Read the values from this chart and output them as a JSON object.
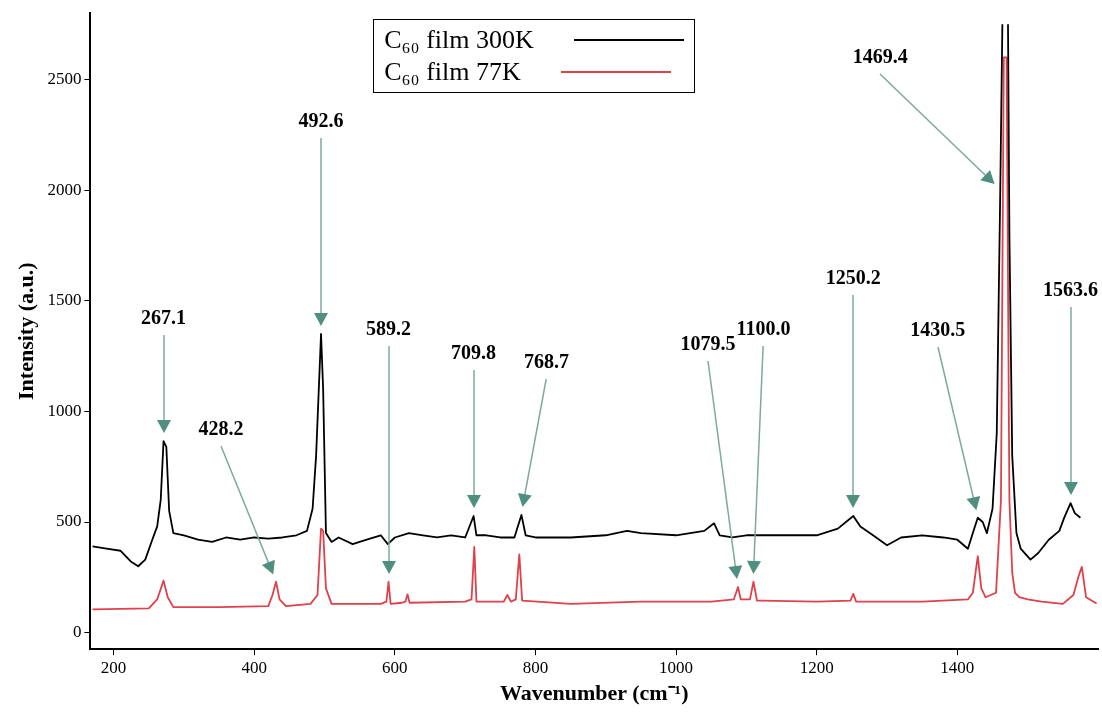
{
  "chart_data": {
    "type": "line",
    "xlabel": "Wavenumber (cm⁻¹)",
    "ylabel": "Intensity (a.u.)",
    "xlim": [
      167,
      1600
    ],
    "xticks": [
      200,
      400,
      600,
      800,
      1000,
      1200,
      1400
    ],
    "ylim": [
      -75,
      2800
    ],
    "yticks": [
      0,
      500,
      1000,
      1500,
      2000,
      2500
    ],
    "grid": false,
    "legend": "top",
    "marker": "none",
    "line_style": "solid",
    "series": [
      {
        "name": "C₆₀ film 300K",
        "color": "#000000",
        "x": [
          170,
          190,
          210,
          225,
          235,
          245,
          255,
          262,
          267,
          271,
          275,
          279,
          285,
          300,
          320,
          340,
          360,
          380,
          400,
          420,
          440,
          460,
          475,
          483,
          488,
          495,
          498,
          502,
          510,
          520,
          540,
          560,
          580,
          590,
          600,
          620,
          640,
          660,
          680,
          700,
          712,
          716,
          730,
          750,
          770,
          780,
          786,
          800,
          850,
          900,
          930,
          950,
          1000,
          1040,
          1054,
          1062,
          1080,
          1100,
          1150,
          1200,
          1230,
          1252,
          1262,
          1280,
          1300,
          1320,
          1350,
          1380,
          1400,
          1415,
          1422,
          1429,
          1436,
          1442,
          1450,
          1456,
          1461,
          1464,
          1466,
          1470,
          1472,
          1474,
          1478,
          1484,
          1490,
          1504,
          1515,
          1530,
          1545,
          1552,
          1561,
          1567,
          1575
        ],
        "values": [
          390,
          380,
          370,
          320,
          300,
          330,
          420,
          480,
          600,
          865,
          840,
          550,
          450,
          440,
          420,
          410,
          430,
          420,
          430,
          425,
          430,
          440,
          460,
          560,
          800,
          1350,
          1100,
          450,
          410,
          430,
          400,
          420,
          440,
          400,
          430,
          450,
          440,
          430,
          440,
          430,
          527,
          440,
          440,
          430,
          430,
          532,
          440,
          430,
          430,
          440,
          460,
          450,
          440,
          460,
          494,
          440,
          430,
          440,
          440,
          440,
          470,
          527,
          480,
          440,
          395,
          430,
          440,
          430,
          420,
          379,
          450,
          519,
          500,
          450,
          560,
          900,
          2000,
          2750,
          null,
          null,
          2750,
          1800,
          800,
          450,
          380,
          330,
          360,
          420,
          460,
          520,
          585,
          540,
          519
        ]
      },
      {
        "name": "C₆₀ film 77K",
        "color": "#e0404a",
        "x": [
          170,
          250,
          262,
          271,
          277,
          285,
          350,
          420,
          426,
          431,
          436,
          445,
          480,
          490,
          495,
          498,
          502,
          510,
          580,
          588,
          591,
          594,
          610,
          615,
          618,
          621,
          700,
          709,
          713,
          716,
          755,
          760,
          765,
          772,
          777,
          781,
          850,
          950,
          1050,
          1082,
          1088,
          1092,
          1105,
          1110,
          1115,
          1200,
          1248,
          1252,
          1256,
          1350,
          1415,
          1422,
          1429,
          1434,
          1440,
          1455,
          1462,
          1466,
          1470,
          1474,
          1478,
          1482,
          1488,
          1500,
          1520,
          1550,
          1565,
          1572,
          1577,
          1583,
          1598
        ],
        "values": [
          105,
          110,
          150,
          235,
          160,
          115,
          115,
          120,
          170,
          230,
          150,
          120,
          130,
          170,
          470,
          460,
          200,
          130,
          130,
          140,
          230,
          130,
          135,
          140,
          173,
          135,
          140,
          150,
          387,
          140,
          140,
          170,
          140,
          150,
          354,
          145,
          130,
          140,
          140,
          150,
          206,
          150,
          150,
          230,
          145,
          140,
          145,
          175,
          140,
          140,
          150,
          180,
          346,
          200,
          160,
          180,
          600,
          2600,
          2600,
          600,
          272,
          180,
          160,
          150,
          140,
          130,
          170,
          250,
          297,
          160,
          132
        ]
      }
    ],
    "annotations": [
      "267.1",
      "428.2",
      "492.6",
      "589.2",
      "709.8",
      "768.7",
      "1079.5",
      "1100.0",
      "1250.2",
      "1430.5",
      "1469.4",
      "1563.6"
    ]
  }
}
